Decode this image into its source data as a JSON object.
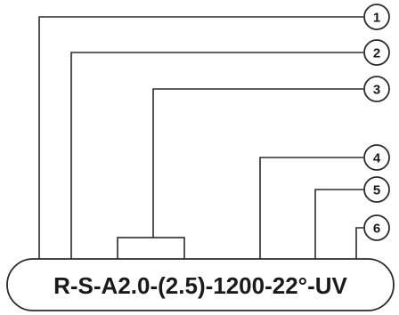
{
  "code": "R-S-A2.0-(2.5)-1200-22°-UV",
  "callouts": [
    {
      "number": "1"
    },
    {
      "number": "2"
    },
    {
      "number": "3"
    },
    {
      "number": "4"
    },
    {
      "number": "5"
    },
    {
      "number": "6"
    }
  ]
}
